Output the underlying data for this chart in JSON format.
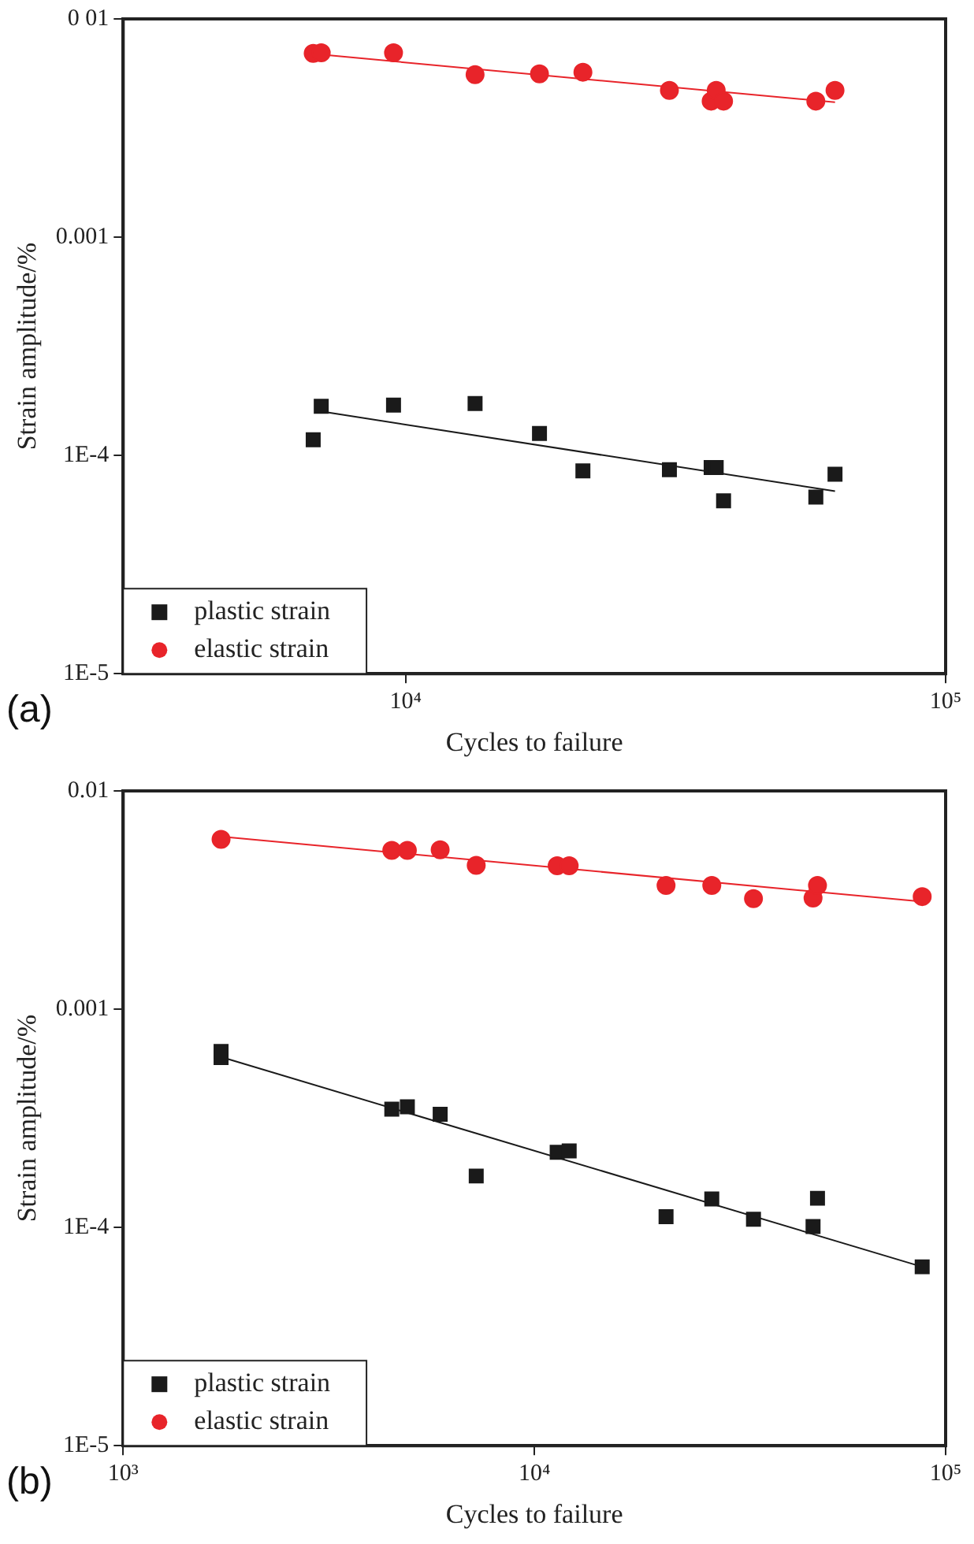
{
  "chart_data": [
    {
      "type": "scatter",
      "xlabel": "Cycles to failure",
      "ylabel": "Strain amplitude/%",
      "annotations": [
        "(a)"
      ],
      "log": "xy",
      "grid": false,
      "legend": "bottom left",
      "xlim": [
        3000,
        100000
      ],
      "xticks": [
        {
          "value": 10000,
          "label": "10⁴"
        },
        {
          "value": 100000,
          "label": "10⁵"
        }
      ],
      "ylim": [
        1e-05,
        0.01
      ],
      "yticks": [
        {
          "value": 1e-05,
          "label": "1E-5"
        },
        {
          "value": 0.0001,
          "label": "1E-4"
        },
        {
          "value": 0.001,
          "label": "0.001"
        },
        {
          "value": 0.01,
          "label": "0 01"
        }
      ],
      "series": [
        {
          "name": "plastic strain",
          "color": "#1a1a1a",
          "marker": "square",
          "x": [
            6745,
            6980,
            9500,
            13450,
            17700,
            21300,
            30800,
            36800,
            37600,
            38800,
            57500,
            62400
          ],
          "values": [
            0.000118,
            0.000168,
            0.00017,
            0.000173,
            0.000126,
            8.5e-05,
            8.6e-05,
            8.8e-05,
            8.8e-05,
            6.2e-05,
            6.45e-05,
            8.2e-05
          ]
        },
        {
          "name": "elastic strain",
          "color": "#e8242a",
          "marker": "circle",
          "x": [
            6745,
            6980,
            9500,
            13450,
            17700,
            21300,
            30800,
            36800,
            37600,
            38800,
            57500,
            62400
          ],
          "values": [
            0.00695,
            0.007,
            0.007,
            0.00555,
            0.0056,
            0.0057,
            0.0047,
            0.0042,
            0.0047,
            0.0042,
            0.0042,
            0.0047
          ]
        },
        {
          "type": "line",
          "color": "#1a1a1a",
          "marker": "none",
          "x": [
            6980,
            62400
          ],
          "values": [
            0.000159,
            6.86e-05
          ]
        },
        {
          "type": "line",
          "color": "#e8242a",
          "marker": "none",
          "x": [
            6980,
            62400
          ],
          "values": [
            0.00686,
            0.00415
          ]
        }
      ]
    },
    {
      "type": "scatter",
      "xlabel": "Cycles to failure",
      "ylabel": "Strain amplitude/%",
      "annotations": [
        "(b)"
      ],
      "log": "xy",
      "grid": false,
      "legend": "bottom left",
      "xlim": [
        1000,
        100000
      ],
      "xticks": [
        {
          "value": 1000,
          "label": "10³"
        },
        {
          "value": 10000,
          "label": "10⁴"
        },
        {
          "value": 100000,
          "label": "10⁵"
        }
      ],
      "ylim": [
        1e-05,
        0.01
      ],
      "yticks": [
        {
          "value": 1e-05,
          "label": "1E-5"
        },
        {
          "value": 0.0001,
          "label": "1E-4"
        },
        {
          "value": 0.001,
          "label": "0.001"
        },
        {
          "value": 0.01,
          "label": "0.01"
        }
      ],
      "series": [
        {
          "name": "plastic strain",
          "color": "#1a1a1a",
          "marker": "square",
          "x": [
            1730,
            1730,
            4500,
            4910,
            5900,
            7220,
            11360,
            12150,
            20900,
            27000,
            34100,
            47600,
            48800,
            87700
          ],
          "values": [
            0.00064,
            0.0006,
            0.000348,
            0.000357,
            0.00033,
            0.000172,
            0.000221,
            0.000224,
            0.000112,
            0.000135,
            0.000109,
            0.000101,
            0.000136,
            6.6e-05
          ]
        },
        {
          "name": "elastic strain",
          "color": "#e8242a",
          "marker": "circle",
          "x": [
            1730,
            4500,
            4910,
            5900,
            7220,
            11360,
            12150,
            20900,
            27000,
            34100,
            47600,
            48800,
            87700
          ],
          "values": [
            0.006,
            0.00534,
            0.00534,
            0.00537,
            0.00456,
            0.00454,
            0.00454,
            0.00369,
            0.00369,
            0.00321,
            0.00323,
            0.00369,
            0.00328
          ]
        },
        {
          "type": "line",
          "color": "#1a1a1a",
          "marker": "none",
          "x": [
            1730,
            87700
          ],
          "values": [
            0.000604,
            6.6e-05
          ]
        },
        {
          "type": "line",
          "color": "#e8242a",
          "marker": "none",
          "x": [
            1730,
            87700
          ],
          "values": [
            0.00618,
            0.00311
          ]
        }
      ]
    }
  ]
}
